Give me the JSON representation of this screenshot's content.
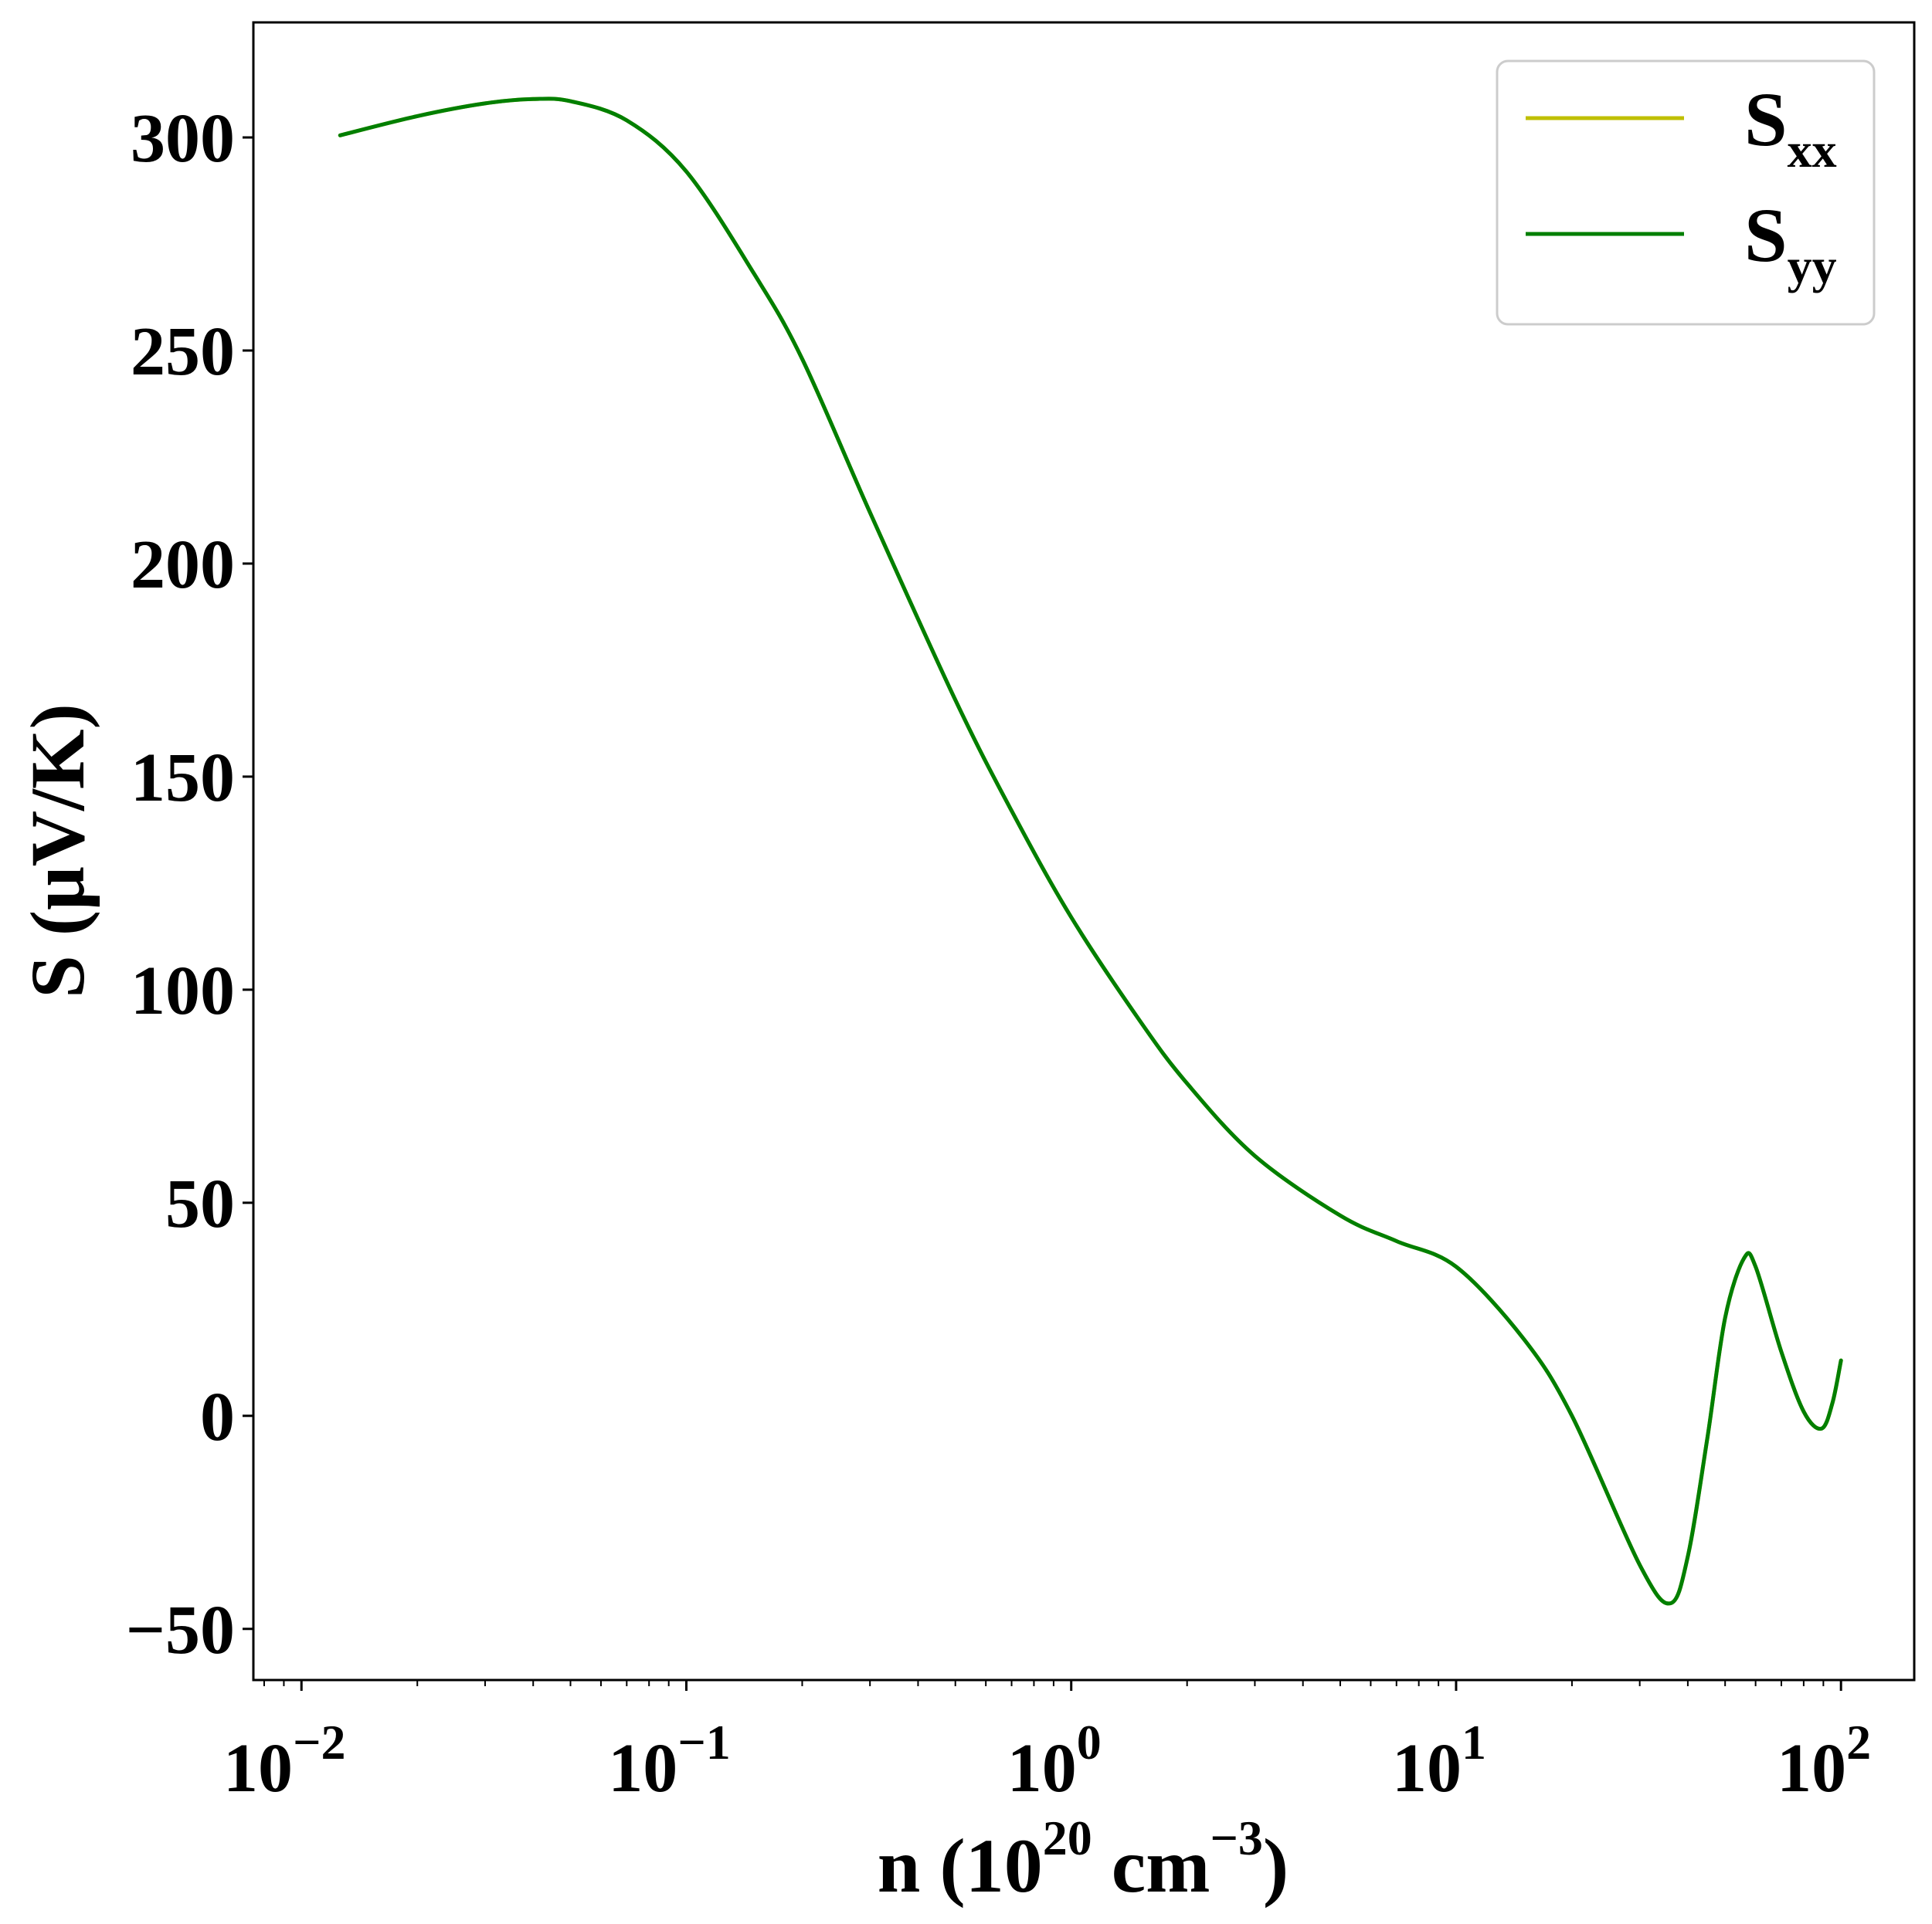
{
  "chart_data": {
    "type": "line",
    "xscale": "log",
    "xlabel": "n (10^20 cm^−3)",
    "xlabel_parts": {
      "base": "n (10",
      "exp1": "20",
      "mid": " cm",
      "exp2": "−3",
      "end": ")"
    },
    "ylabel": "S (μV/K)",
    "xlim": [
      0.0075,
      155
    ],
    "ylim": [
      -62,
      327
    ],
    "x_ticks": [
      {
        "value": 0.01,
        "base": "10",
        "exp": "−2"
      },
      {
        "value": 0.1,
        "base": "10",
        "exp": "−1"
      },
      {
        "value": 1,
        "base": "10",
        "exp": "0"
      },
      {
        "value": 10,
        "base": "10",
        "exp": "1"
      },
      {
        "value": 100,
        "base": "10",
        "exp": "2"
      }
    ],
    "y_ticks": [
      {
        "value": -50,
        "label": "−50"
      },
      {
        "value": 0,
        "label": "0"
      },
      {
        "value": 50,
        "label": "50"
      },
      {
        "value": 100,
        "label": "100"
      },
      {
        "value": 150,
        "label": "150"
      },
      {
        "value": 200,
        "label": "200"
      },
      {
        "value": 250,
        "label": "250"
      },
      {
        "value": 300,
        "label": "300"
      }
    ],
    "grid": false,
    "legend": {
      "placement": "top-right"
    },
    "series": [
      {
        "name": "S_xx",
        "label_main": "S",
        "label_sub": "xx",
        "color": "#bfbf00",
        "x": [
          0.0126,
          0.02,
          0.03,
          0.04,
          0.05,
          0.07,
          0.1,
          0.15,
          0.2,
          0.3,
          0.5,
          0.7,
          1,
          1.5,
          2,
          3,
          5,
          7,
          10,
          15,
          20,
          30,
          36,
          40,
          45,
          50,
          56,
          60,
          70,
          80,
          89,
          95,
          100
        ],
        "y": [
          300.5,
          305,
          308,
          309,
          308.5,
          304,
          292,
          268,
          248,
          212,
          168,
          142,
          117,
          93,
          78,
          61,
          47,
          41,
          35,
          18,
          0,
          -35,
          -44,
          -33,
          -5,
          23,
          37,
          35,
          15,
          1,
          -3,
          3,
          13
        ]
      },
      {
        "name": "S_yy",
        "label_main": "S",
        "label_sub": "yy",
        "color": "#007f00",
        "x": [
          0.0126,
          0.02,
          0.03,
          0.04,
          0.05,
          0.07,
          0.1,
          0.15,
          0.2,
          0.3,
          0.5,
          0.7,
          1,
          1.5,
          2,
          3,
          5,
          7,
          10,
          15,
          20,
          30,
          36,
          40,
          45,
          50,
          56,
          60,
          70,
          80,
          89,
          95,
          100
        ],
        "y": [
          300.5,
          305,
          308,
          309,
          308.5,
          304,
          292,
          268,
          248,
          212,
          168,
          142,
          117,
          93,
          78,
          61,
          47,
          41,
          35,
          18,
          0,
          -35,
          -44,
          -33,
          -5,
          23,
          37,
          35,
          15,
          1,
          -3,
          3,
          13
        ]
      }
    ]
  }
}
